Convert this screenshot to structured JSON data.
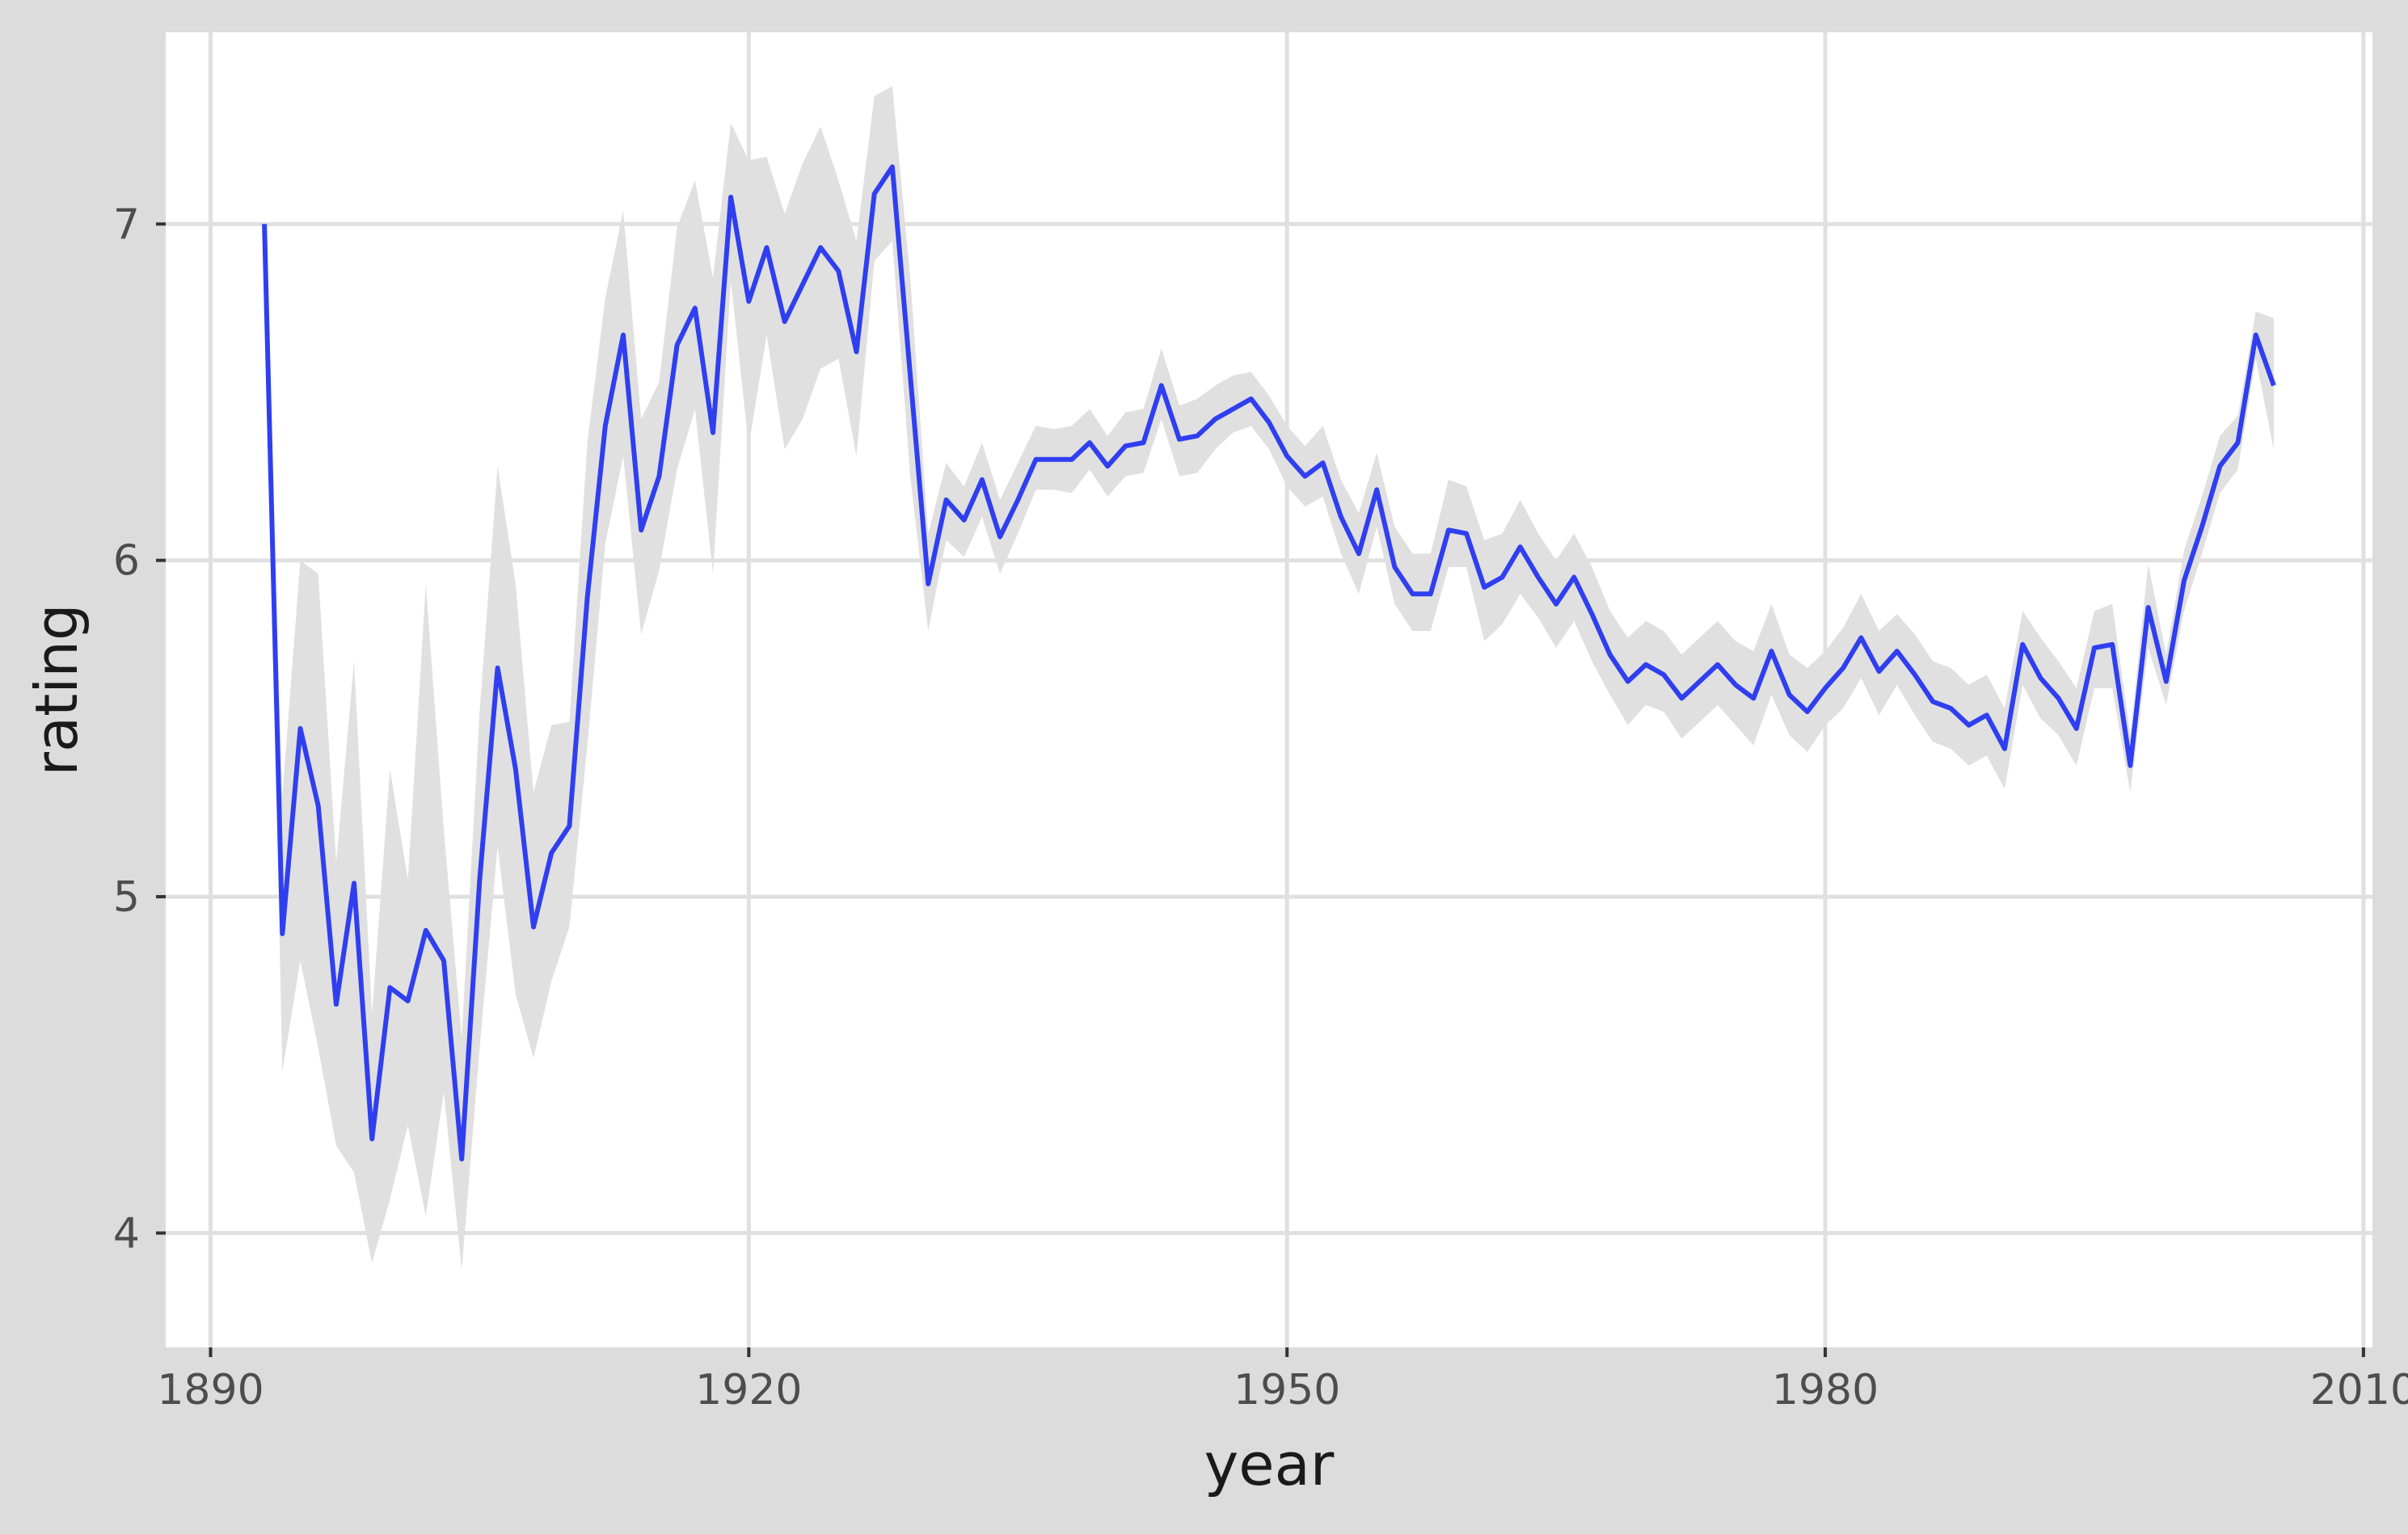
{
  "chart_data": {
    "type": "line",
    "title": "",
    "xlabel": "year",
    "ylabel": "rating",
    "xlim": [
      1887.5,
      2010.5
    ],
    "ylim": [
      3.66,
      7.57
    ],
    "x_ticks": [
      1890,
      1920,
      1950,
      1980,
      2010
    ],
    "x_tick_labels": [
      "1890",
      "1920",
      "1950",
      "1980",
      "2010"
    ],
    "y_ticks": [
      4,
      5,
      6,
      7
    ],
    "y_tick_labels": [
      "4",
      "5",
      "6",
      "7"
    ],
    "grid": true,
    "legend": "none",
    "colors": {
      "panel_background": "#ffffff",
      "plot_background": "#dcdcdc",
      "grid": "#e0e0e0",
      "line": "#2f3ff0",
      "ribbon": "#e0e0e0"
    },
    "series": [
      {
        "x": [
          1893,
          1894,
          1895,
          1896,
          1897,
          1898,
          1899,
          1900,
          1901,
          1902,
          1903,
          1904,
          1905,
          1906,
          1907,
          1908,
          1909,
          1910,
          1911,
          1912,
          1913,
          1914,
          1915,
          1916,
          1917,
          1918,
          1919,
          1920,
          1921,
          1922,
          1923,
          1924,
          1925,
          1926,
          1927,
          1928,
          1929,
          1930,
          1931,
          1932,
          1933,
          1934,
          1935,
          1936,
          1937,
          1938,
          1939,
          1940,
          1941,
          1942,
          1943,
          1944,
          1945,
          1946,
          1947,
          1948,
          1949,
          1950,
          1951,
          1952,
          1953,
          1954,
          1955,
          1956,
          1957,
          1958,
          1959,
          1960,
          1961,
          1962,
          1963,
          1964,
          1965,
          1966,
          1967,
          1968,
          1969,
          1970,
          1971,
          1972,
          1973,
          1974,
          1975,
          1976,
          1977,
          1978,
          1979,
          1980,
          1981,
          1982,
          1983,
          1984,
          1985,
          1986,
          1987,
          1988,
          1989,
          1990,
          1991,
          1992,
          1993,
          1994,
          1995,
          1996,
          1997,
          1998,
          1999,
          2000,
          2001,
          2002,
          2003,
          2004,
          2005
        ],
        "values": [
          7.0,
          4.89,
          5.5,
          5.27,
          4.68,
          5.04,
          4.28,
          4.73,
          4.69,
          4.9,
          4.81,
          4.22,
          5.05,
          5.68,
          5.38,
          4.91,
          5.13,
          5.21,
          5.89,
          6.4,
          6.67,
          6.09,
          6.25,
          6.64,
          6.75,
          6.38,
          7.08,
          6.77,
          6.93,
          6.71,
          6.82,
          6.93,
          6.86,
          6.62,
          7.09,
          7.17,
          6.55,
          5.93,
          6.18,
          6.12,
          6.24,
          6.07,
          6.18,
          6.3,
          6.3,
          6.3,
          6.35,
          6.28,
          6.34,
          6.35,
          6.52,
          6.36,
          6.37,
          6.42,
          6.45,
          6.48,
          6.41,
          6.31,
          6.25,
          6.29,
          6.13,
          6.02,
          6.21,
          5.98,
          5.9,
          5.9,
          6.09,
          6.08,
          5.92,
          5.95,
          6.04,
          5.95,
          5.87,
          5.95,
          5.84,
          5.72,
          5.64,
          5.69,
          5.66,
          5.59,
          5.64,
          5.69,
          5.63,
          5.59,
          5.73,
          5.6,
          5.55,
          5.62,
          5.68,
          5.77,
          5.67,
          5.73,
          5.66,
          5.58,
          5.56,
          5.51,
          5.54,
          5.44,
          5.75,
          5.65,
          5.59,
          5.5,
          5.74,
          5.75,
          5.39,
          5.86,
          5.64,
          5.94,
          6.1,
          6.28,
          6.35,
          6.67,
          6.52
        ],
        "lower": [
          7.0,
          4.48,
          4.81,
          4.55,
          4.26,
          4.18,
          3.91,
          4.1,
          4.32,
          4.05,
          4.42,
          3.89,
          4.55,
          5.15,
          4.71,
          4.52,
          4.75,
          4.91,
          5.45,
          6.05,
          6.31,
          5.78,
          5.97,
          6.27,
          6.45,
          5.96,
          6.83,
          6.34,
          6.67,
          6.33,
          6.42,
          6.57,
          6.6,
          6.31,
          6.89,
          6.95,
          6.25,
          5.79,
          6.06,
          6.01,
          6.13,
          5.96,
          6.08,
          6.21,
          6.21,
          6.2,
          6.27,
          6.19,
          6.25,
          6.26,
          6.42,
          6.25,
          6.26,
          6.33,
          6.38,
          6.4,
          6.33,
          6.22,
          6.16,
          6.19,
          6.02,
          5.9,
          6.1,
          5.87,
          5.79,
          5.79,
          5.98,
          5.98,
          5.76,
          5.81,
          5.9,
          5.83,
          5.74,
          5.82,
          5.7,
          5.6,
          5.51,
          5.57,
          5.55,
          5.47,
          5.52,
          5.57,
          5.51,
          5.45,
          5.6,
          5.48,
          5.43,
          5.51,
          5.56,
          5.65,
          5.54,
          5.63,
          5.54,
          5.46,
          5.44,
          5.39,
          5.42,
          5.32,
          5.63,
          5.53,
          5.48,
          5.39,
          5.62,
          5.62,
          5.31,
          5.74,
          5.57,
          5.85,
          6.02,
          6.2,
          6.27,
          6.6,
          6.33
        ],
        "upper": [
          7.0,
          5.3,
          6.0,
          5.96,
          5.1,
          5.7,
          4.65,
          5.38,
          5.05,
          5.93,
          5.2,
          4.58,
          5.55,
          6.28,
          5.93,
          5.31,
          5.51,
          5.52,
          6.35,
          6.78,
          7.04,
          6.42,
          6.53,
          6.99,
          7.13,
          6.84,
          7.3,
          7.19,
          7.2,
          7.03,
          7.18,
          7.29,
          7.13,
          6.95,
          7.38,
          7.41,
          6.84,
          6.08,
          6.29,
          6.22,
          6.35,
          6.18,
          6.29,
          6.4,
          6.39,
          6.4,
          6.45,
          6.37,
          6.44,
          6.45,
          6.63,
          6.46,
          6.48,
          6.52,
          6.55,
          6.56,
          6.49,
          6.4,
          6.34,
          6.4,
          6.24,
          6.14,
          6.32,
          6.1,
          6.02,
          6.02,
          6.24,
          6.22,
          6.06,
          6.08,
          6.18,
          6.08,
          6.0,
          6.08,
          5.98,
          5.85,
          5.77,
          5.82,
          5.79,
          5.72,
          5.77,
          5.82,
          5.76,
          5.73,
          5.87,
          5.72,
          5.68,
          5.73,
          5.8,
          5.9,
          5.79,
          5.84,
          5.78,
          5.7,
          5.68,
          5.63,
          5.66,
          5.56,
          5.85,
          5.77,
          5.7,
          5.62,
          5.85,
          5.87,
          5.48,
          5.99,
          5.72,
          6.03,
          6.19,
          6.37,
          6.43,
          6.74,
          6.72
        ]
      }
    ]
  }
}
